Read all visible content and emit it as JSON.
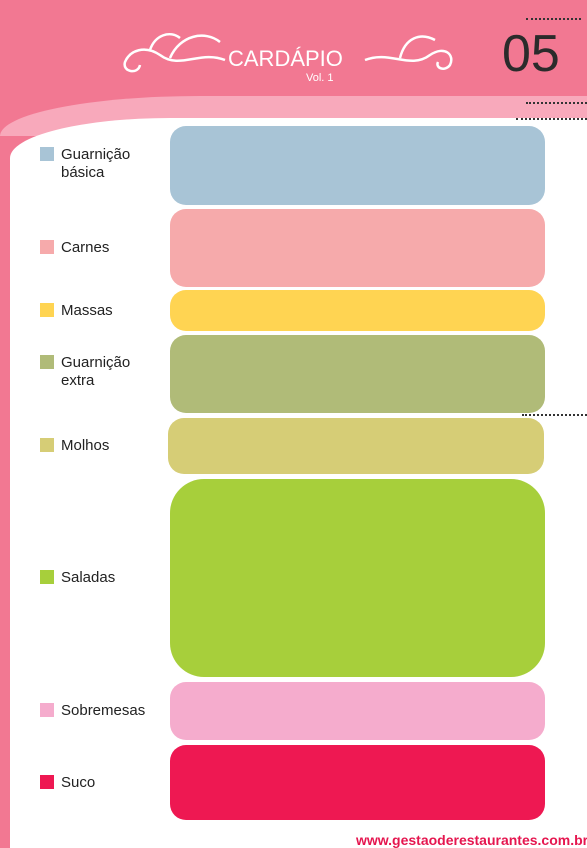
{
  "header": {
    "title": "CARDÁPIO",
    "subtitle": "Vol. 1",
    "number": "05"
  },
  "menu": [
    {
      "label": "Guarnição básica",
      "color": "#a8c4d6"
    },
    {
      "label": "Carnes",
      "color": "#f6aaab"
    },
    {
      "label": "Massas",
      "color": "#ffd452"
    },
    {
      "label": "Guarnição extra",
      "color": "#b0bb78"
    },
    {
      "label": "Molhos",
      "color": "#d6cd76"
    },
    {
      "label": "Saladas",
      "color": "#a7cf3b"
    },
    {
      "label": "Sobremesas",
      "color": "#f5accd"
    },
    {
      "label": "Suco",
      "color": "#ee1852"
    }
  ],
  "footer": {
    "url": "www.gestaoderestaurantes.com.br"
  }
}
